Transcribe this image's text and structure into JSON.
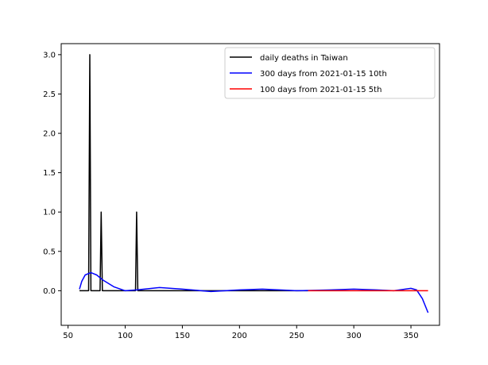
{
  "chart_data": {
    "type": "line",
    "title": "",
    "xlabel": "",
    "ylabel": "",
    "xlim": [
      44,
      375
    ],
    "ylim": [
      -0.44,
      3.14
    ],
    "x_ticks": [
      50,
      100,
      150,
      200,
      250,
      300,
      350
    ],
    "y_ticks": [
      0.0,
      0.5,
      1.0,
      1.5,
      2.0,
      2.5,
      3.0
    ],
    "x_tick_labels": [
      "50",
      "100",
      "150",
      "200",
      "250",
      "300",
      "350"
    ],
    "y_tick_labels": [
      "0.0",
      "0.5",
      "1.0",
      "1.5",
      "2.0",
      "2.5",
      "3.0"
    ],
    "grid": false,
    "legend_position": "upper-right",
    "series": [
      {
        "name": "daily deaths in Taiwan",
        "color": "#000000",
        "x": [
          60,
          68,
          69,
          70,
          78,
          79,
          80,
          109,
          110,
          111,
          260
        ],
        "y": [
          0,
          0,
          3,
          0,
          0,
          1,
          0,
          0,
          1,
          0,
          0
        ]
      },
      {
        "name": "300 days from 2021-01-15 10th",
        "color": "#0000ff",
        "x": [
          60,
          62,
          65,
          70,
          75,
          80,
          90,
          100,
          110,
          130,
          150,
          175,
          200,
          220,
          250,
          280,
          300,
          320,
          335,
          350,
          355,
          360,
          365
        ],
        "y": [
          0.02,
          0.12,
          0.2,
          0.23,
          0.2,
          0.14,
          0.05,
          0.0,
          0.01,
          0.04,
          0.02,
          -0.01,
          0.01,
          0.02,
          0.0,
          0.01,
          0.02,
          0.01,
          0.0,
          0.03,
          0.01,
          -0.1,
          -0.28
        ]
      },
      {
        "name": "100 days from 2021-01-15 5th",
        "color": "#ff0000",
        "x": [
          260,
          290,
          320,
          350,
          365
        ],
        "y": [
          0.0,
          0.0,
          0.0,
          0.0,
          0.0
        ]
      }
    ]
  }
}
